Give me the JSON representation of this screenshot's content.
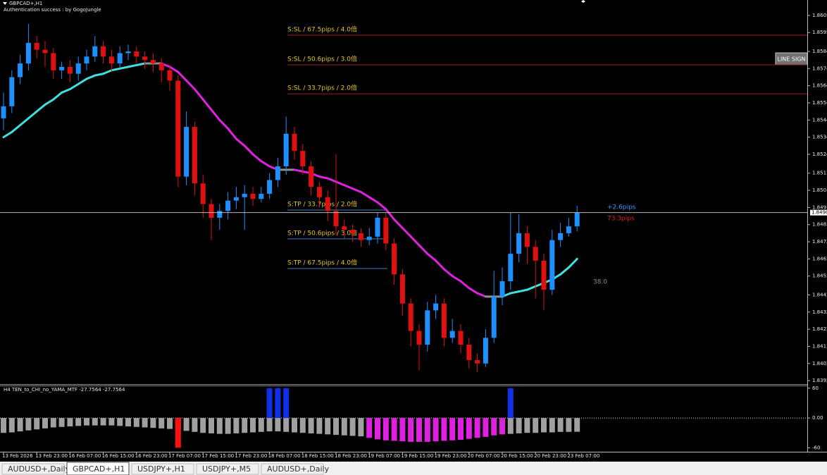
{
  "header": {
    "symbol": "GBPCAD+,H1",
    "status": "Authentication success : by GogoJungle"
  },
  "button": "LINE SIGN",
  "tabs": [
    "AUDUSD+,Daily",
    "GBPCAD+,H1",
    "USDJPY+,H1",
    "USDJPY+,M5",
    "AUDUSD+,Daily"
  ],
  "active_tab": 1,
  "chart_data": [
    {
      "type": "candlestick",
      "categories": [
        "13 Feb 2026",
        null,
        null,
        null,
        "13 Feb 23:00",
        null,
        null,
        null,
        "16 Feb 07:00",
        null,
        null,
        null,
        "16 Feb 15:00",
        null,
        null,
        null,
        "16 Feb 23:00",
        null,
        null,
        null,
        "17 Feb 07:00",
        null,
        null,
        null,
        "17 Feb 15:00",
        null,
        null,
        null,
        "17 Feb 23:00",
        null,
        null,
        null,
        "18 Feb 07:00",
        null,
        null,
        null,
        "18 Feb 15:00",
        null,
        null,
        null,
        "18 Feb 23:00",
        null,
        null,
        null,
        "19 Feb 07:00",
        null,
        null,
        null,
        "19 Feb 15:00",
        null,
        null,
        null,
        "19 Feb 23:00",
        null,
        null,
        null,
        "20 Feb 07:00",
        null,
        null,
        null,
        "20 Feb 15:00",
        null,
        null,
        null,
        "20 Feb 23:00",
        null,
        null,
        null,
        "23 Feb 07:00",
        null
      ],
      "open": [
        1.8545,
        1.8552,
        1.8569,
        1.8577,
        1.8589,
        1.8585,
        1.8583,
        1.8573,
        1.8575,
        1.8571,
        1.8577,
        1.8581,
        1.8587,
        1.8581,
        1.8577,
        1.8583,
        1.8584,
        1.8581,
        1.8579,
        1.8577,
        1.8573,
        1.8567,
        1.8511,
        1.854,
        1.8507,
        1.8495,
        1.8487,
        1.8491,
        1.8497,
        1.8499,
        1.8501,
        1.8498,
        1.8501,
        1.8509,
        1.8517,
        1.8536,
        1.8526,
        1.8517,
        1.8505,
        1.8499,
        1.8491,
        1.8482,
        1.848,
        1.8478,
        1.8474,
        1.8476,
        1.8487,
        1.8472,
        1.8454,
        1.8437,
        1.8421,
        1.8413,
        1.8433,
        1.8437,
        1.8417,
        1.8421,
        1.8413,
        1.8404,
        1.8402,
        1.8417,
        1.8441,
        1.845,
        1.8466,
        1.8478,
        1.847,
        1.8462,
        1.8445,
        1.8474,
        1.8478,
        1.8482
      ],
      "high": [
        1.856,
        1.8573,
        1.8582,
        1.86,
        1.8593,
        1.859,
        1.8586,
        1.8578,
        1.8579,
        1.8581,
        1.8585,
        1.8593,
        1.859,
        1.8585,
        1.8587,
        1.8588,
        1.8587,
        1.8584,
        1.8583,
        1.858,
        1.8576,
        1.857,
        1.8549,
        1.8543,
        1.8512,
        1.8498,
        1.8495,
        1.8502,
        1.8505,
        1.8506,
        1.8505,
        1.8505,
        1.8513,
        1.8522,
        1.8546,
        1.854,
        1.853,
        1.852,
        1.8508,
        1.8503,
        1.8524,
        1.8486,
        1.8483,
        1.8481,
        1.8481,
        1.849,
        1.849,
        1.8475,
        1.8457,
        1.844,
        1.8425,
        1.8438,
        1.8442,
        1.844,
        1.8428,
        1.8425,
        1.8417,
        1.8408,
        1.8422,
        1.8456,
        1.8458,
        1.849,
        1.8489,
        1.8482,
        1.8474,
        1.8466,
        1.848,
        1.8484,
        1.8487,
        1.8494
      ],
      "low": [
        1.8538,
        1.8548,
        1.8565,
        1.8573,
        1.858,
        1.8575,
        1.8568,
        1.8568,
        1.8566,
        1.8567,
        1.8573,
        1.8578,
        1.8577,
        1.8572,
        1.8574,
        1.8579,
        1.8577,
        1.8574,
        1.8572,
        1.8566,
        1.8561,
        1.8505,
        1.8506,
        1.85,
        1.8487,
        1.8474,
        1.848,
        1.8486,
        1.8492,
        1.848,
        1.8494,
        1.8496,
        1.8498,
        1.8505,
        1.8512,
        1.8521,
        1.8512,
        1.85,
        1.8493,
        1.8485,
        1.8477,
        1.8475,
        1.8473,
        1.847,
        1.8471,
        1.8472,
        1.8468,
        1.8448,
        1.843,
        1.8412,
        1.8398,
        1.8409,
        1.8428,
        1.8412,
        1.8414,
        1.8408,
        1.8399,
        1.8397,
        1.84,
        1.8414,
        1.8436,
        1.8445,
        1.8461,
        1.846,
        1.844,
        1.8433,
        1.8442,
        1.847,
        1.8476,
        1.8479
      ],
      "close": [
        1.8552,
        1.8569,
        1.8577,
        1.8589,
        1.8585,
        1.8583,
        1.8573,
        1.8575,
        1.8571,
        1.8577,
        1.8581,
        1.8587,
        1.8581,
        1.8577,
        1.8583,
        1.8584,
        1.8581,
        1.8579,
        1.8577,
        1.8573,
        1.8567,
        1.8511,
        1.854,
        1.8507,
        1.8495,
        1.8487,
        1.8491,
        1.8497,
        1.8499,
        1.8501,
        1.8498,
        1.8501,
        1.8509,
        1.8517,
        1.8536,
        1.8526,
        1.8517,
        1.8505,
        1.8499,
        1.8491,
        1.8482,
        1.848,
        1.8478,
        1.8474,
        1.8476,
        1.8487,
        1.8472,
        1.8454,
        1.8437,
        1.8421,
        1.8413,
        1.8433,
        1.8437,
        1.8417,
        1.8421,
        1.8413,
        1.8404,
        1.8402,
        1.8417,
        1.8441,
        1.845,
        1.8466,
        1.8478,
        1.847,
        1.8462,
        1.8445,
        1.8474,
        1.8478,
        1.8482,
        1.849
      ],
      "up_color": "#1e8fff",
      "down_color": "#e01010",
      "ylim": [
        1.839,
        1.8614
      ],
      "yticks": [
        1.8605,
        1.8595,
        1.8584,
        1.8574,
        1.8564,
        1.8554,
        1.8544,
        1.8534,
        1.8524,
        1.8513,
        1.8503,
        1.8493,
        1.8483,
        1.8473,
        1.8463,
        1.8453,
        1.8442,
        1.8432,
        1.8422,
        1.8412,
        1.8402,
        1.8392
      ],
      "last_price": {
        "value": 1.849,
        "label": "1.8490"
      },
      "ma": {
        "values": [
          1.8534,
          1.8537,
          1.8541,
          1.8545,
          1.8549,
          1.8553,
          1.8556,
          1.856,
          1.8562,
          1.8565,
          1.8568,
          1.857,
          1.8571,
          1.8573,
          1.8574,
          1.8575,
          1.8576,
          1.8577,
          1.8577,
          1.8577,
          1.8575,
          1.8572,
          1.8567,
          1.8562,
          1.8556,
          1.855,
          1.8544,
          1.8539,
          1.8533,
          1.8529,
          1.8524,
          1.852,
          1.8517,
          1.8515,
          1.8515,
          1.8515,
          1.8514,
          1.8513,
          1.8511,
          1.851,
          1.8508,
          1.8506,
          1.8504,
          1.8502,
          1.8499,
          1.8496,
          1.8492,
          1.8486,
          1.8481,
          1.8476,
          1.8471,
          1.8466,
          1.8462,
          1.8457,
          1.8453,
          1.845,
          1.8446,
          1.8443,
          1.8441,
          1.8441,
          1.8441,
          1.8443,
          1.8444,
          1.8445,
          1.8447,
          1.8449,
          1.8451,
          1.8454,
          1.8458,
          1.8463
        ],
        "up_color": "#40e0e0",
        "down_color": "#e020e0",
        "flat_color": "#909090"
      },
      "levels": [
        {
          "label": "S:SL / 67.5pips / 4.0倍",
          "price": 1.85935,
          "color": "#a01c1c",
          "style": "ray"
        },
        {
          "label": "S:SL / 50.6pips / 3.0倍",
          "price": 1.85762,
          "color": "#a01c1c",
          "style": "ray"
        },
        {
          "label": "S:SL / 33.7pips / 2.0倍",
          "price": 1.85593,
          "color": "#a01c1c",
          "style": "ray"
        },
        {
          "label": "S:TP / 33.7pips / 2.0倍",
          "price": 1.84915,
          "color": "#3a7fc0",
          "style": "segment"
        },
        {
          "label": "S:TP / 50.6pips / 3.0倍",
          "price": 1.84747,
          "color": "#3a7fc0",
          "style": "segment"
        },
        {
          "label": "S:TP / 67.5pips / 4.0倍",
          "price": 1.84574,
          "color": "#3a7fc0",
          "style": "segment"
        }
      ],
      "level_text_color": "#e6c619",
      "annotations": [
        {
          "text": "+2.6pips",
          "color": "#3399ff"
        },
        {
          "text": "73.3pips",
          "color": "#e02020"
        },
        {
          "text": "38.0",
          "color": "#8a8a8a"
        }
      ]
    },
    {
      "type": "oscillator",
      "title": "H4  TEN_to_CHI_no_YAMA_MTF -27.7564 -27.7564",
      "ylim": [
        -68,
        64
      ],
      "yticks": [
        60,
        {
          "value": 0,
          "label": "0.00"
        },
        -60
      ],
      "bars": {
        "values": [
          -30,
          -29,
          -27,
          -25,
          -23,
          -21,
          -19,
          -18,
          -17,
          -16,
          -15,
          -15,
          -15,
          -15,
          -16,
          -17,
          -18,
          -19,
          -20,
          -21,
          -22,
          -24,
          -26,
          -28,
          -30,
          -31,
          -32,
          -32,
          -31,
          -30,
          -29,
          -28,
          -27,
          -27,
          -28,
          -29,
          -30,
          -31,
          -32,
          -33,
          -34,
          -35,
          -36,
          -37,
          -40,
          -43,
          -45,
          -46,
          -47,
          -48,
          -48,
          -48,
          -47,
          -46,
          -45,
          -44,
          -42,
          -40,
          -38,
          -35,
          -33,
          -32,
          -31,
          -30,
          -30,
          -29,
          -29,
          -28,
          -28,
          -27.7564
        ],
        "colors": [
          "#a0a0a0",
          "#a0a0a0",
          "#a0a0a0",
          "#a0a0a0",
          "#a0a0a0",
          "#a0a0a0",
          "#a0a0a0",
          "#a0a0a0",
          "#a0a0a0",
          "#a0a0a0",
          "#a0a0a0",
          "#a0a0a0",
          "#a0a0a0",
          "#a0a0a0",
          "#a0a0a0",
          "#a0a0a0",
          "#a0a0a0",
          "#a0a0a0",
          "#a0a0a0",
          "#a0a0a0",
          "#a0a0a0",
          "#a0a0a0",
          "#a0a0a0",
          "#a0a0a0",
          "#a0a0a0",
          "#a0a0a0",
          "#a0a0a0",
          "#a0a0a0",
          "#a0a0a0",
          "#a0a0a0",
          "#a0a0a0",
          "#a0a0a0",
          "#a0a0a0",
          "#a0a0a0",
          "#a0a0a0",
          "#a0a0a0",
          "#a0a0a0",
          "#a0a0a0",
          "#a0a0a0",
          "#a0a0a0",
          "#a0a0a0",
          "#a0a0a0",
          "#a0a0a0",
          "#a0a0a0",
          "#e020e0",
          "#e020e0",
          "#e020e0",
          "#e020e0",
          "#e020e0",
          "#e020e0",
          "#e020e0",
          "#e020e0",
          "#e020e0",
          "#e020e0",
          "#e020e0",
          "#e020e0",
          "#e020e0",
          "#e020e0",
          "#e020e0",
          "#e020e0",
          "#e020e0",
          "#a0a0a0",
          "#a0a0a0",
          "#a0a0a0",
          "#a0a0a0",
          "#a0a0a0",
          "#a0a0a0",
          "#a0a0a0",
          "#a0a0a0",
          "#a0a0a0"
        ]
      },
      "signals": [
        {
          "color": "#1030e8",
          "values": [
            null,
            null,
            null,
            null,
            null,
            null,
            null,
            null,
            null,
            null,
            null,
            null,
            null,
            null,
            null,
            null,
            null,
            null,
            null,
            null,
            null,
            null,
            null,
            null,
            null,
            null,
            null,
            null,
            null,
            null,
            null,
            null,
            60,
            60,
            60,
            null,
            null,
            null,
            null,
            null,
            null,
            null,
            null,
            null,
            null,
            null,
            null,
            null,
            null,
            null,
            null,
            null,
            null,
            null,
            null,
            null,
            null,
            null,
            null,
            null,
            null,
            60,
            null,
            null,
            null,
            null,
            null,
            null,
            null,
            null
          ]
        },
        {
          "color": "#ff1010",
          "values": [
            null,
            null,
            null,
            null,
            null,
            null,
            null,
            null,
            null,
            null,
            null,
            null,
            null,
            null,
            null,
            null,
            null,
            null,
            null,
            null,
            null,
            -60,
            null,
            null,
            null,
            null,
            null,
            null,
            null,
            null,
            null,
            null,
            null,
            null,
            null,
            null,
            null,
            null,
            null,
            null,
            null,
            null,
            null,
            null,
            null,
            null,
            null,
            null,
            null,
            null,
            null,
            null,
            null,
            null,
            null,
            null,
            null,
            null,
            null,
            null,
            null,
            null,
            null,
            null,
            null,
            null,
            null,
            null,
            null,
            null
          ]
        }
      ]
    }
  ]
}
